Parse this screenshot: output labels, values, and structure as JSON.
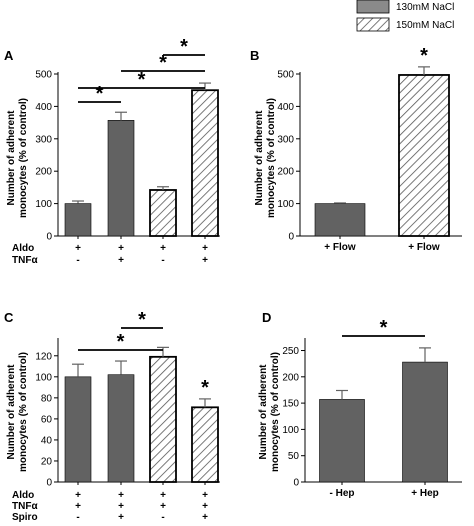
{
  "legend": [
    {
      "label": "130mM NaCl",
      "style": "solid"
    },
    {
      "label": "150mM NaCl",
      "style": "hatched"
    }
  ],
  "colors": {
    "solid_bar": "#626262",
    "axis": "#000000",
    "hatch": "#555555"
  },
  "chart_data": [
    {
      "panel": "A",
      "type": "bar",
      "ylabel": "Number of adherent monocytes (% of control)",
      "ylim": [
        0,
        500
      ],
      "yticks": [
        0,
        100,
        200,
        300,
        400,
        500
      ],
      "categories": [
        "1",
        "2",
        "3",
        "4"
      ],
      "values": [
        100,
        357,
        142,
        450
      ],
      "errors": [
        8,
        25,
        10,
        22
      ],
      "bar_styles": [
        "solid",
        "solid",
        "hatched",
        "hatched"
      ],
      "conditions": [
        {
          "name": "Aldo",
          "marks": [
            "+",
            "+",
            "+",
            "+"
          ]
        },
        {
          "name": "TNFα",
          "marks": [
            "-",
            "+",
            "-",
            "+"
          ]
        }
      ],
      "brackets": [
        {
          "from": 0,
          "to": 1,
          "label": "*"
        },
        {
          "from": 0,
          "to": 3,
          "label": "*"
        },
        {
          "from": 1,
          "to": 3,
          "label": "*"
        },
        {
          "from": 2,
          "to": 3,
          "label": "*"
        }
      ],
      "bar_stars": []
    },
    {
      "panel": "B",
      "type": "bar",
      "ylabel": "Number of adherent monocytes (% of control)",
      "ylim": [
        0,
        500
      ],
      "yticks": [
        0,
        100,
        200,
        300,
        400,
        500
      ],
      "categories": [
        "+ Flow",
        "+ Flow"
      ],
      "values": [
        100,
        497
      ],
      "errors": [
        2,
        25
      ],
      "bar_styles": [
        "solid",
        "hatched"
      ],
      "conditions": [],
      "brackets": [],
      "bar_stars": [
        {
          "bar": 1,
          "label": "*"
        }
      ]
    },
    {
      "panel": "C",
      "type": "bar",
      "ylabel": "Number of adherent monocytes (% of control)",
      "ylim": [
        0,
        135
      ],
      "yticks": [
        0,
        20,
        40,
        60,
        80,
        100,
        120
      ],
      "categories": [
        "1",
        "2",
        "3",
        "4"
      ],
      "values": [
        100,
        102,
        119,
        71
      ],
      "errors": [
        12,
        13,
        9,
        8
      ],
      "bar_styles": [
        "solid",
        "solid",
        "hatched",
        "hatched"
      ],
      "conditions": [
        {
          "name": "Aldo",
          "marks": [
            "+",
            "+",
            "+",
            "+"
          ]
        },
        {
          "name": "TNFα",
          "marks": [
            "+",
            "+",
            "+",
            "+"
          ]
        },
        {
          "name": "Spiro",
          "marks": [
            "-",
            "+",
            "-",
            "+"
          ]
        }
      ],
      "brackets": [
        {
          "from": 0,
          "to": 2,
          "label": "*"
        },
        {
          "from": 1,
          "to": 2,
          "label": "*"
        }
      ],
      "bar_stars": [
        {
          "bar": 3,
          "label": "*"
        }
      ]
    },
    {
      "panel": "D",
      "type": "bar",
      "ylabel": "Number of adherent monocytes (% of control)",
      "ylim": [
        0,
        270
      ],
      "yticks": [
        0,
        50,
        100,
        150,
        200,
        250
      ],
      "categories": [
        "- Hep",
        "+ Hep"
      ],
      "values": [
        157,
        228
      ],
      "errors": [
        17,
        27
      ],
      "bar_styles": [
        "solid",
        "solid"
      ],
      "conditions": [],
      "brackets": [
        {
          "from": 0,
          "to": 1,
          "label": "*"
        }
      ],
      "bar_stars": []
    }
  ]
}
